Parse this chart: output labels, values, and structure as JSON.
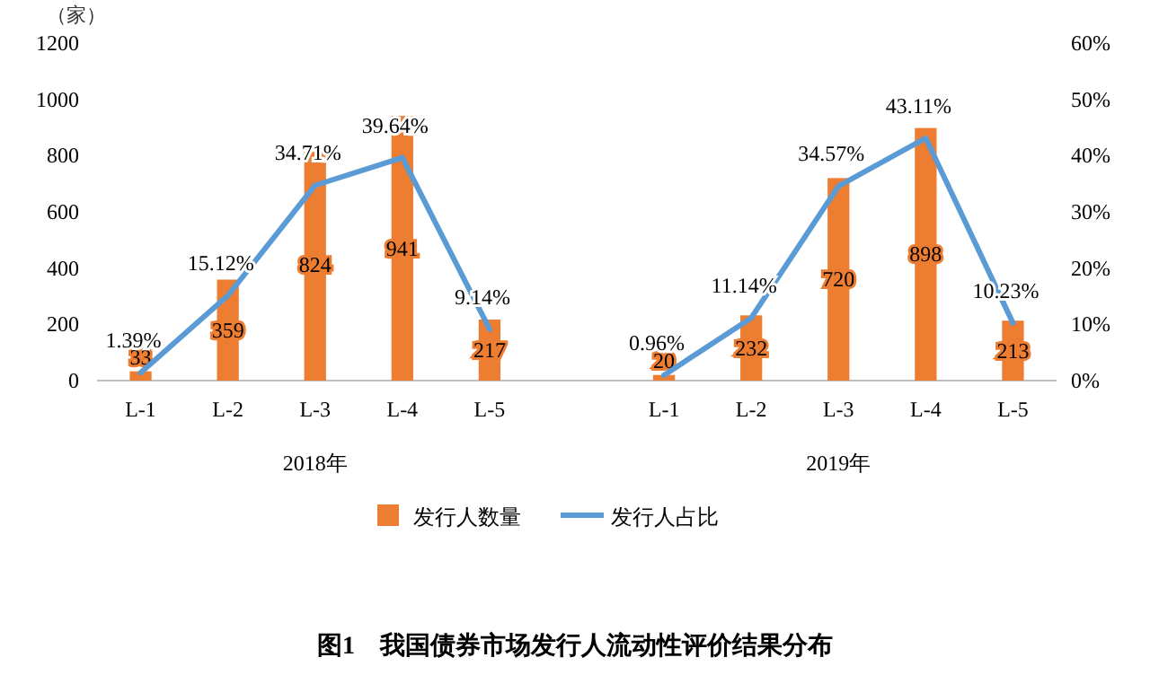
{
  "chart_data": {
    "type": "bar",
    "title": "图1　我国债券市场发行人流动性评价结果分布",
    "ylabel": "（家）",
    "annotations": [
      "2018年",
      "2019年"
    ],
    "categories": [
      "L-1",
      "L-2",
      "L-3",
      "L-4",
      "L-5",
      null,
      "L-1",
      "L-2",
      "L-3",
      "L-4",
      "L-5"
    ],
    "series": [
      {
        "name": "发行人数量",
        "color": "#ed7d31",
        "values": [
          33,
          359,
          824,
          941,
          217,
          null,
          20,
          232,
          720,
          898,
          213
        ],
        "value_labels": [
          "33",
          "359",
          "824",
          "941",
          "217",
          null,
          "20",
          "232",
          "720",
          "898",
          "213"
        ]
      },
      {
        "name": "发行人占比",
        "type": "line",
        "axis": "y2",
        "color": "#5b9bd5",
        "values": [
          1.39,
          15.12,
          34.71,
          39.64,
          9.14,
          null,
          0.96,
          11.14,
          34.57,
          43.11,
          10.23
        ],
        "value_labels": [
          "1.39%",
          "15.12%",
          "34.71%",
          "39.64%",
          "9.14%",
          null,
          "0.96%",
          "11.14%",
          "34.57%",
          "43.11%",
          "10.23%"
        ]
      }
    ],
    "ylim": [
      0,
      1200
    ],
    "yticks": [
      0,
      200,
      400,
      600,
      800,
      1000,
      1200
    ],
    "y2lim": [
      0,
      60
    ],
    "y2ticks": [
      {
        "value": 0,
        "label": "0%"
      },
      {
        "value": 10,
        "label": "10%"
      },
      {
        "value": 20,
        "label": "20%"
      },
      {
        "value": 30,
        "label": "30%"
      },
      {
        "value": 40,
        "label": "40%"
      },
      {
        "value": 50,
        "label": "50%"
      },
      {
        "value": 60,
        "label": "60%"
      }
    ],
    "legend": "bottom"
  }
}
